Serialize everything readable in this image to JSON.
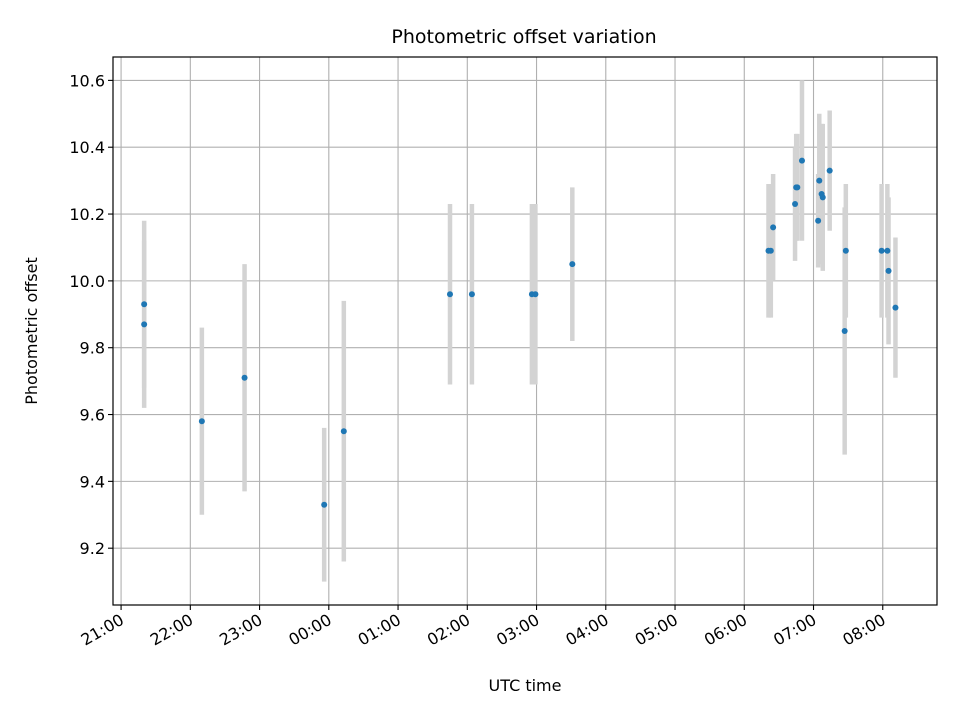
{
  "chart_data": {
    "type": "scatter",
    "title": "Photometric offset variation",
    "xlabel": "UTC time",
    "ylabel": "Photometric offset",
    "x_unit": "UTC time (HH:MM), night spanning midnight",
    "xlim": [
      "20:53",
      "08:47"
    ],
    "ylim": [
      9.03,
      10.67
    ],
    "grid": true,
    "x_ticks": [
      "21:00",
      "22:00",
      "23:00",
      "00:00",
      "01:00",
      "02:00",
      "03:00",
      "04:00",
      "05:00",
      "06:00",
      "07:00",
      "08:00"
    ],
    "y_ticks": [
      9.2,
      9.4,
      9.6,
      9.8,
      10.0,
      10.2,
      10.4,
      10.6
    ],
    "marker_color": "#1f77b4",
    "errorbar_color": "#d3d3d3",
    "points": [
      {
        "x": "21:20",
        "y": 9.93,
        "err": 0.25
      },
      {
        "x": "21:20",
        "y": 9.87,
        "err": 0.25
      },
      {
        "x": "22:10",
        "y": 9.58,
        "err": 0.28
      },
      {
        "x": "22:47",
        "y": 9.71,
        "err": 0.34
      },
      {
        "x": "23:56",
        "y": 9.33,
        "err": 0.23
      },
      {
        "x": "00:13",
        "y": 9.55,
        "err": 0.39
      },
      {
        "x": "01:45",
        "y": 9.96,
        "err": 0.27
      },
      {
        "x": "02:04",
        "y": 9.96,
        "err": 0.27
      },
      {
        "x": "02:56",
        "y": 9.96,
        "err": 0.27
      },
      {
        "x": "02:59",
        "y": 9.96,
        "err": 0.27
      },
      {
        "x": "03:31",
        "y": 10.05,
        "err": 0.23
      },
      {
        "x": "06:21",
        "y": 10.09,
        "err": 0.2
      },
      {
        "x": "06:23",
        "y": 10.09,
        "err": 0.2
      },
      {
        "x": "06:25",
        "y": 10.16,
        "err": 0.16
      },
      {
        "x": "06:44",
        "y": 10.23,
        "err": 0.17
      },
      {
        "x": "06:45",
        "y": 10.28,
        "err": 0.16
      },
      {
        "x": "06:46",
        "y": 10.28,
        "err": 0.16
      },
      {
        "x": "06:50",
        "y": 10.36,
        "err": 0.24
      },
      {
        "x": "07:04",
        "y": 10.18,
        "err": 0.14
      },
      {
        "x": "07:05",
        "y": 10.3,
        "err": 0.2
      },
      {
        "x": "07:07",
        "y": 10.26,
        "err": 0.21
      },
      {
        "x": "07:08",
        "y": 10.25,
        "err": 0.22
      },
      {
        "x": "07:14",
        "y": 10.33,
        "err": 0.18
      },
      {
        "x": "07:27",
        "y": 9.85,
        "err": 0.37
      },
      {
        "x": "07:28",
        "y": 10.09,
        "err": 0.2
      },
      {
        "x": "07:59",
        "y": 10.09,
        "err": 0.2
      },
      {
        "x": "08:04",
        "y": 10.09,
        "err": 0.2
      },
      {
        "x": "08:05",
        "y": 10.03,
        "err": 0.22
      },
      {
        "x": "08:11",
        "y": 9.92,
        "err": 0.21
      }
    ]
  }
}
